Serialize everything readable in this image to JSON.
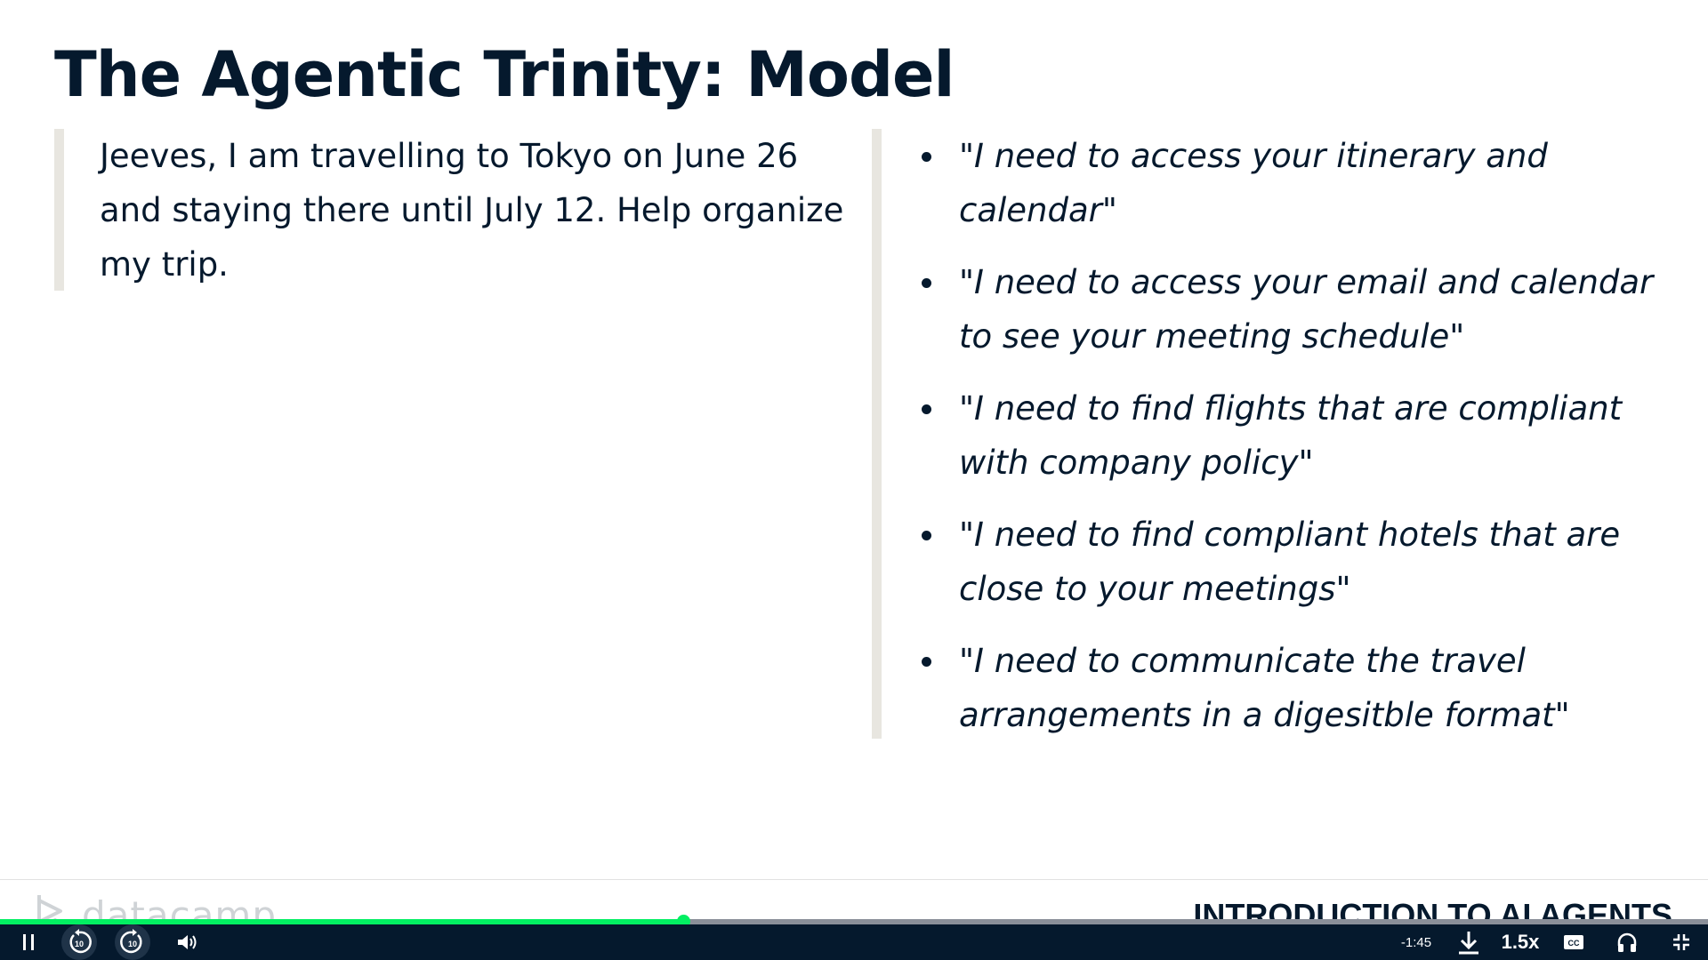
{
  "slide": {
    "title": "The Agentic Trinity: Model",
    "prompt": "Jeeves, I am travelling to Tokyo on June 26 and staying there until July 12. Help organize my trip.",
    "needs": [
      "\"I need to access your itinerary and calendar\"",
      "\"I need to access your email and calendar to see your meeting schedule\"",
      "\"I need to find flights that are compliant with company policy\"",
      "\"I need to find compliant hotels that are close to your meetings\"",
      "\"I need to communicate the travel arrangements in a digesitble format\""
    ]
  },
  "footer": {
    "logo_text": "datacamp",
    "course_title": "INTRODUCTION TO AI AGENTS"
  },
  "player": {
    "progress_fraction": 0.4,
    "time_remaining": "-1:45",
    "speed": "1.5x",
    "icons": {
      "pause": "pause-icon",
      "rewind": "rewind-10-icon",
      "forward": "forward-10-icon",
      "volume": "volume-icon",
      "download": "download-icon",
      "captions": "captions-icon",
      "audio": "headphones-icon",
      "exit_fullscreen": "exit-fullscreen-icon"
    },
    "colors": {
      "accent": "#03ef62",
      "bar": "#05192d",
      "text": "#05192d"
    }
  }
}
